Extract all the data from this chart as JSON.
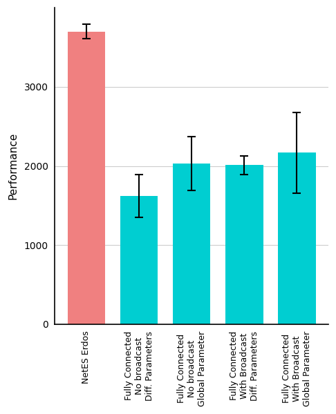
{
  "categories": [
    "NetES Erdos",
    "Fully Connected\nNo broadcast\nDiff. Parameters",
    "Fully Connected\nNo broadcast\nGlobal Parameter",
    "Fully Connected\nWith Broadcast\nDiff. Parameters",
    "Fully Connected\nWith Broadcast\nGlobal Parameter"
  ],
  "values": [
    3700,
    1620,
    2030,
    2010,
    2170
  ],
  "errors": [
    90,
    270,
    340,
    115,
    510
  ],
  "bar_colors": [
    "#F08080",
    "#00CED1",
    "#00CED1",
    "#00CED1",
    "#00CED1"
  ],
  "ylabel": "Performance",
  "ylim": [
    0,
    4000
  ],
  "yticks": [
    0,
    1000,
    2000,
    3000
  ],
  "background_color": "#ffffff",
  "grid_color": "#cccccc",
  "spine_color": "#000000",
  "error_color": "black",
  "error_capsize": 4,
  "error_linewidth": 1.5,
  "bar_width": 0.72
}
